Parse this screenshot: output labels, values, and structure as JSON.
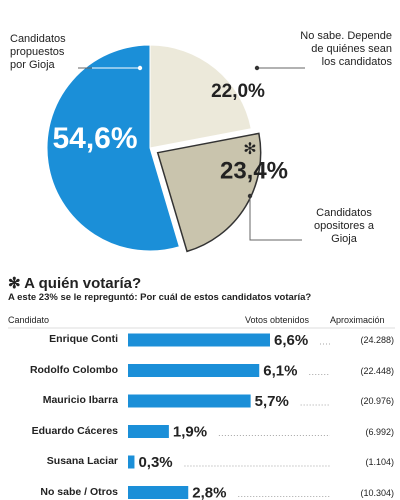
{
  "chart_data": [
    {
      "type": "pie",
      "categories": [
        "Candidatos propuestos por Gioja",
        "No sabe. Depende de quiénes sean los candidatos",
        "Candidatos opositores a Gioja"
      ],
      "values": [
        54.6,
        22.0,
        23.4
      ],
      "value_labels": [
        "54,6%",
        "22,0%",
        "23,4%"
      ],
      "colors": [
        "#1b8fd8",
        "#ece9da",
        "#c9c4ad"
      ],
      "note_mark": "✻"
    },
    {
      "type": "bar",
      "title": "✻ A quién votaría?",
      "subtitle": "A este 23% se le repreguntó: Por cuál de estos candidatos votaría?",
      "headers": [
        "Candidato",
        "Votos obtenidos",
        "Aproximación"
      ],
      "categories": [
        "Enrique Conti",
        "Rodolfo Colombo",
        "Mauricio Ibarra",
        "Eduardo Cáceres",
        "Susana Laciar",
        "No sabe / Otros"
      ],
      "values": [
        6.6,
        6.1,
        5.7,
        1.9,
        0.3,
        2.8
      ],
      "value_labels": [
        "6,6%",
        "6,1%",
        "5,7%",
        "1,9%",
        "0,3%",
        "2,8%"
      ],
      "approximations": [
        "(24.288)",
        "(22.448)",
        "(20.976)",
        "(6.992)",
        "(1.104)",
        "(10.304)"
      ],
      "color": "#1b8fd8"
    }
  ]
}
